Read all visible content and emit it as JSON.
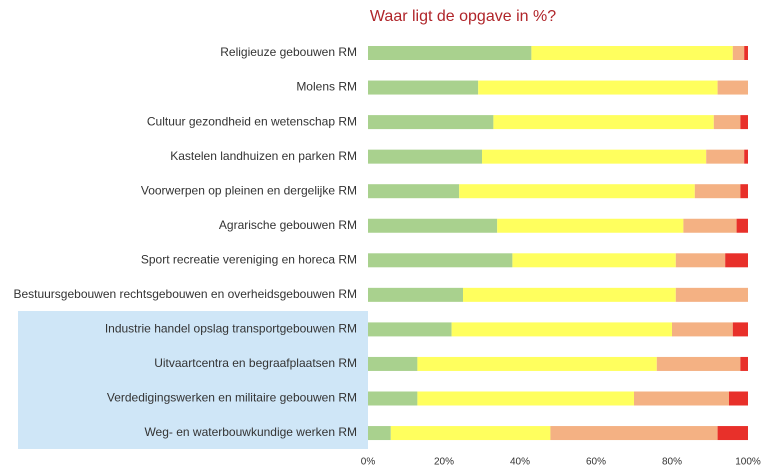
{
  "chart_data": {
    "type": "stacked-barh",
    "title": "Waar ligt de opgave in %?",
    "categories": [
      "Religieuze gebouwen RM",
      "Molens RM",
      "Cultuur gezondheid en wetenschap RM",
      "Kastelen landhuizen en parken RM",
      "Voorwerpen op pleinen en dergelijke RM",
      "Agrarische gebouwen RM",
      "Sport recreatie vereniging en horeca RM",
      "Bestuursgebouwen rechtsgebouwen en overheidsgebouwen RM",
      "Industrie handel opslag transportgebouwen RM",
      "Uitvaartcentra en begraafplaatsen RM",
      "Verdedigingswerken en militaire gebouwen RM",
      "Weg- en waterbouwkundige werken RM"
    ],
    "series": [
      {
        "color": "#a9d18e",
        "values": [
          43,
          29,
          33,
          30,
          24,
          34,
          38,
          25,
          22,
          13,
          13,
          6
        ]
      },
      {
        "color": "#ffff5e",
        "values": [
          53,
          63,
          58,
          59,
          62,
          49,
          43,
          56,
          58,
          63,
          57,
          42
        ]
      },
      {
        "color": "#f4b183",
        "values": [
          3,
          8,
          7,
          10,
          12,
          14,
          13,
          19,
          16,
          22,
          25,
          44
        ]
      },
      {
        "color": "#e8302a",
        "values": [
          1,
          0,
          2,
          1,
          2,
          3,
          6,
          0,
          4,
          2,
          5,
          8
        ]
      }
    ],
    "xlim": [
      0,
      100
    ],
    "xticks": [
      {
        "value": 0,
        "label": "0%"
      },
      {
        "value": 20,
        "label": "20%"
      },
      {
        "value": 40,
        "label": "40%"
      },
      {
        "value": 60,
        "label": "60%"
      },
      {
        "value": 80,
        "label": "80%"
      },
      {
        "value": 100,
        "label": "100%"
      }
    ]
  }
}
